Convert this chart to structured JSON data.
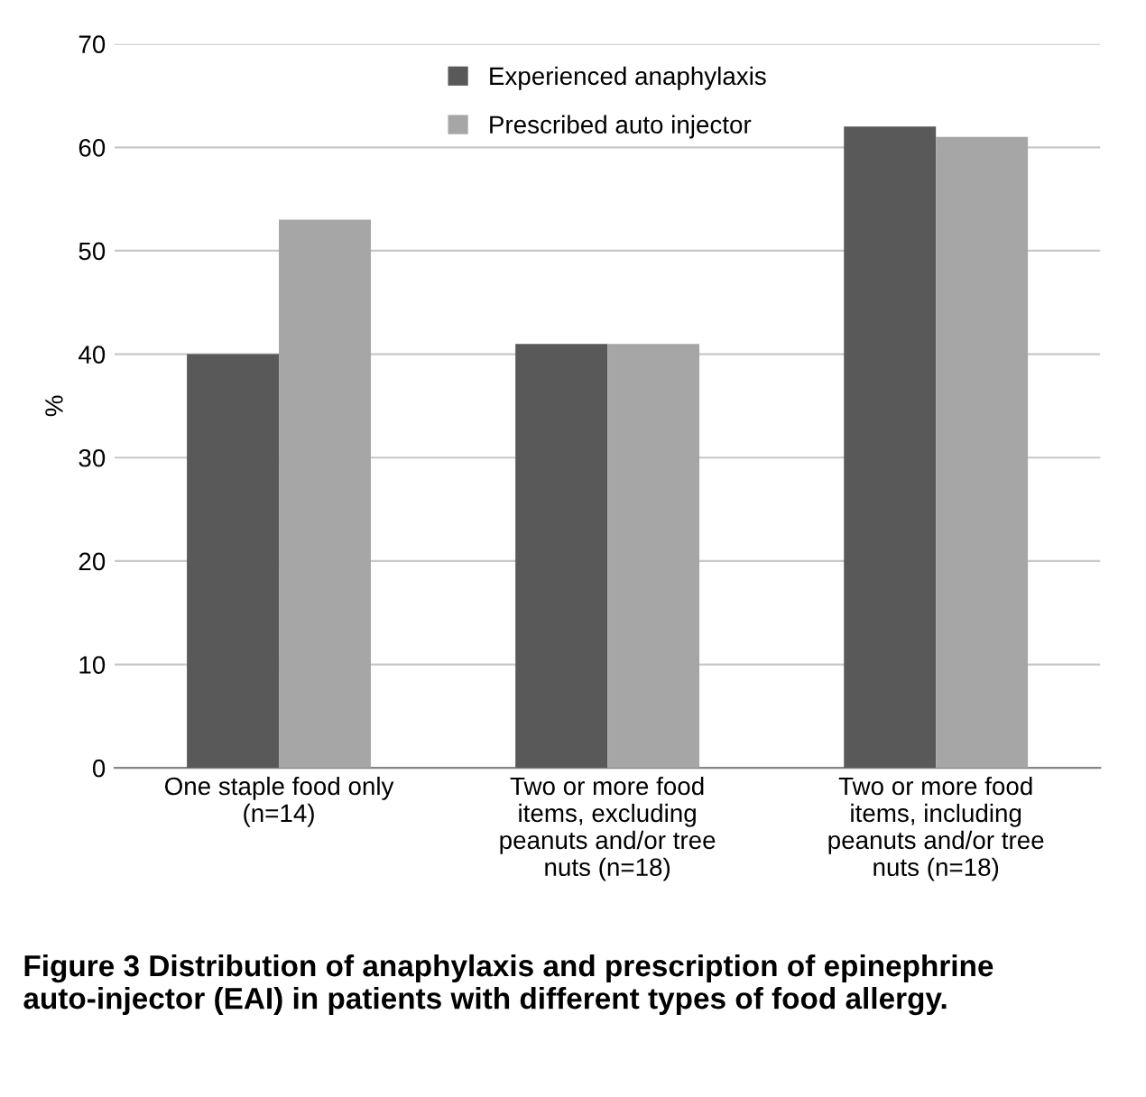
{
  "chart_data": {
    "type": "bar",
    "ylabel": "%",
    "categories": [
      "One staple food only\n(n=14)",
      "Two or more food\nitems, excluding\npeanuts and/or tree\nnuts (n=18)",
      "Two or more food\nitems, including\npeanuts and/or tree\nnuts (n=18)"
    ],
    "series": [
      {
        "name": "Experienced anaphylaxis",
        "color": "#595959",
        "values": [
          40,
          41,
          62
        ]
      },
      {
        "name": "Prescribed auto injector",
        "color": "#a6a6a6",
        "values": [
          53,
          41,
          61
        ]
      }
    ],
    "ylim": [
      0,
      70
    ],
    "yticks": [
      0,
      10,
      20,
      30,
      40,
      50,
      60,
      70
    ],
    "grid": "y",
    "legend": "top",
    "annotations": [
      "Figure 3 Distribution of anaphylaxis and prescription of epinephrine auto-injector (EAI) in patients with different types of food allergy."
    ]
  }
}
